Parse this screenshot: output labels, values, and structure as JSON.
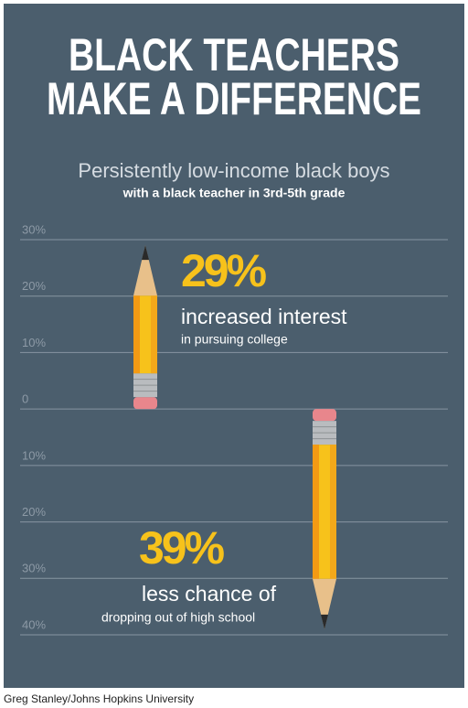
{
  "chart_data": {
    "type": "bar",
    "title": [
      "BLACK TEACHERS",
      "MAKE A DIFFERENCE"
    ],
    "subtitle": [
      "Persistently low-income black boys",
      "with a black teacher in 3rd-5th grade"
    ],
    "values": [
      29,
      -39
    ],
    "value_labels": [
      "29%",
      "39%"
    ],
    "annotations": [
      {
        "heading": "increased interest",
        "detail": "in pursuing college"
      },
      {
        "heading": "less chance of",
        "detail": "dropping out of high school"
      }
    ],
    "ylim": [
      -40,
      30
    ],
    "yticks": [
      {
        "value": 30,
        "label": "30%"
      },
      {
        "value": 20,
        "label": "20%"
      },
      {
        "value": 10,
        "label": "10%"
      },
      0,
      {
        "value": -10,
        "label": "10%"
      },
      {
        "value": -20,
        "label": "20%"
      },
      {
        "value": -30,
        "label": "30%"
      },
      {
        "value": -40,
        "label": "40%"
      }
    ],
    "grid": true,
    "color": "#f7c21b",
    "source": "Greg Stanley/Johns Hopkins University"
  }
}
